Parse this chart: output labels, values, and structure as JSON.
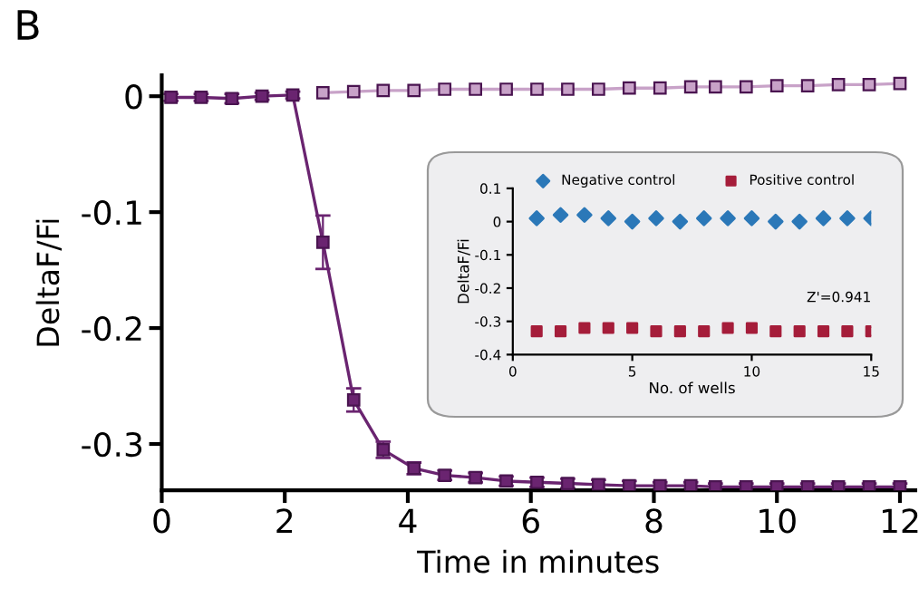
{
  "chart_data": [
    {
      "type": "line",
      "title": "B",
      "xlabel": "Time in minutes",
      "ylabel": "DeltaF/Fi",
      "xlim": [
        0,
        12.25
      ],
      "xticks": [
        0,
        2,
        4,
        6,
        8,
        10,
        12
      ],
      "ylim": [
        -0.34,
        0.018
      ],
      "yticks": [
        0,
        -0.1,
        -0.2,
        -0.3
      ],
      "marker": "square",
      "grid": false,
      "series": [
        {
          "color": "#c8a2c8",
          "x": [
            2.62,
            3.12,
            3.6,
            4.1,
            4.6,
            5.1,
            5.6,
            6.1,
            6.6,
            7.1,
            7.6,
            8.1,
            8.6,
            9.0,
            9.5,
            10.0,
            10.5,
            11.0,
            11.5,
            12.0
          ],
          "values": [
            0.003,
            0.004,
            0.005,
            0.005,
            0.006,
            0.006,
            0.006,
            0.006,
            0.006,
            0.006,
            0.007,
            0.007,
            0.008,
            0.008,
            0.008,
            0.009,
            0.009,
            0.01,
            0.01,
            0.011
          ]
        },
        {
          "color": "#6a2470",
          "x": [
            0.15,
            0.64,
            1.14,
            1.63,
            2.13,
            2.62,
            3.12,
            3.6,
            4.1,
            4.6,
            5.1,
            5.6,
            6.1,
            6.6,
            7.1,
            7.6,
            8.1,
            8.6,
            9.0,
            9.5,
            10.0,
            10.5,
            11.0,
            11.5,
            12.0
          ],
          "values": [
            -0.001,
            -0.001,
            -0.002,
            0.0,
            0.001,
            -0.126,
            -0.262,
            -0.305,
            -0.321,
            -0.327,
            -0.329,
            -0.332,
            -0.333,
            -0.334,
            -0.335,
            -0.336,
            -0.336,
            -0.336,
            -0.337,
            -0.337,
            -0.337,
            -0.337,
            -0.337,
            -0.337,
            -0.337
          ],
          "errors": [
            0.003,
            0.003,
            0.004,
            0.003,
            0.003,
            0.023,
            0.01,
            0.007,
            0.005,
            0.004,
            0.004,
            0.004,
            0.004,
            0.004,
            0.004,
            0.004,
            0.003,
            0.003,
            0.003,
            0.003,
            0.003,
            0.003,
            0.003,
            0.003,
            0.003
          ]
        }
      ]
    },
    {
      "type": "scatter",
      "xlabel": "No. of wells",
      "ylabel": "DeltaF/Fi",
      "xlim": [
        0,
        15
      ],
      "xticks": [
        0,
        5,
        10,
        15
      ],
      "ylim": [
        -0.4,
        0.1
      ],
      "yticks": [
        0.1,
        0,
        -0.1,
        -0.2,
        -0.3,
        -0.4
      ],
      "grid": false,
      "legend": "top",
      "annotations": [
        "Z'=0.941"
      ],
      "x": [
        1,
        2,
        3,
        4,
        5,
        6,
        7,
        8,
        9,
        10,
        11,
        12,
        13,
        14,
        15
      ],
      "series": [
        {
          "name": "Negative control",
          "color": "#2b78b8",
          "marker": "diamond",
          "values": [
            0.01,
            0.02,
            0.02,
            0.01,
            0.0,
            0.01,
            0.0,
            0.01,
            0.01,
            0.01,
            0.0,
            0.0,
            0.01,
            0.01,
            0.01
          ]
        },
        {
          "name": "Positive control",
          "color": "#a51d3a",
          "marker": "square",
          "values": [
            -0.33,
            -0.33,
            -0.32,
            -0.32,
            -0.32,
            -0.33,
            -0.33,
            -0.33,
            -0.32,
            -0.32,
            -0.33,
            -0.33,
            -0.33,
            -0.33,
            -0.33
          ]
        }
      ]
    }
  ]
}
